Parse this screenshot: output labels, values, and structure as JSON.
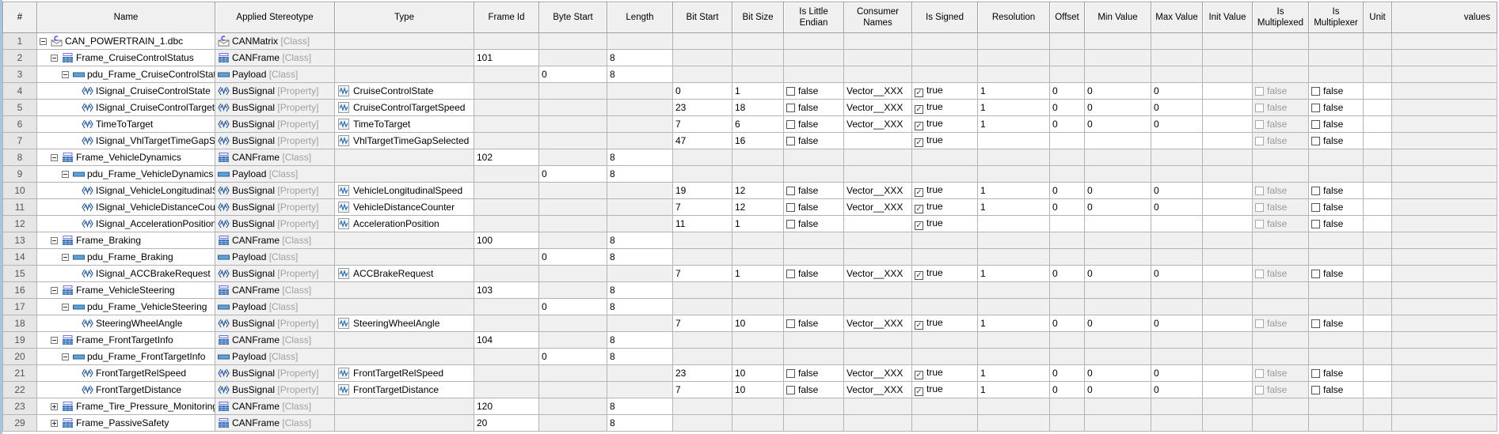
{
  "columns": [
    "#",
    "Name",
    "Applied Stereotype",
    "Type",
    "Frame Id",
    "Byte Start",
    "Length",
    "Bit Start",
    "Bit Size",
    "Is Little Endian",
    "Consumer Names",
    "Is Signed",
    "Resolution",
    "Offset",
    "Min Value",
    "Max Value",
    "Init Value",
    "Is Multiplexed",
    "Is Multiplexer",
    "Unit",
    "values"
  ],
  "colors": {
    "header_bg": "#f0f0f0",
    "readonly_cell": "#f0f0f0",
    "editable_cell": "#ffffff",
    "grid": "#b4b4b4",
    "meta_text": "#a0a0a0"
  },
  "rows": [
    {
      "num": "1",
      "kind": "root",
      "level": 0,
      "expander": "minus",
      "icon": "can-matrix-icon",
      "name": "CAN_POWERTRAIN_1.dbc",
      "stereotype": "CANMatrix",
      "meta": "[Class]"
    },
    {
      "num": "2",
      "kind": "frame",
      "level": 1,
      "expander": "minus",
      "icon": "can-frame-icon",
      "name": "Frame_CruiseControlStatus",
      "stereotype": "CANFrame",
      "meta": "[Class]",
      "frame_id": "101",
      "length": "8"
    },
    {
      "num": "3",
      "kind": "payload",
      "level": 2,
      "expander": "minus",
      "icon": "payload-icon",
      "name": "pdu_Frame_CruiseControlStatus",
      "stereotype": "Payload",
      "meta": "[Class]",
      "byte_start": "0",
      "length": "8"
    },
    {
      "num": "4",
      "kind": "signal",
      "level": 3,
      "icon": "bus-signal-icon",
      "name": "ISignal_CruiseControlState",
      "stereotype": "BusSignal",
      "meta": "[Property]",
      "type": "CruiseControlState",
      "bit_start": "0",
      "bit_size": "1",
      "little_endian": "false",
      "consumer": "Vector__XXX",
      "signed": "true",
      "resolution": "1",
      "offset": "0",
      "min": "0",
      "max": "0",
      "multiplexed": "false",
      "multiplexer": "false"
    },
    {
      "num": "5",
      "kind": "signal",
      "level": 3,
      "icon": "bus-signal-icon",
      "name": "ISignal_CruiseControlTargetSpeed",
      "stereotype": "BusSignal",
      "meta": "[Property]",
      "type": "CruiseControlTargetSpeed",
      "bit_start": "23",
      "bit_size": "18",
      "little_endian": "false",
      "consumer": "Vector__XXX",
      "signed": "true",
      "resolution": "1",
      "offset": "0",
      "min": "0",
      "max": "0",
      "multiplexed": "false",
      "multiplexer": "false"
    },
    {
      "num": "6",
      "kind": "signal",
      "level": 3,
      "icon": "bus-signal-icon",
      "name": "TimeToTarget",
      "stereotype": "BusSignal",
      "meta": "[Property]",
      "type": "TimeToTarget",
      "bit_start": "7",
      "bit_size": "6",
      "little_endian": "false",
      "consumer": "Vector__XXX",
      "signed": "true",
      "resolution": "1",
      "offset": "0",
      "min": "0",
      "max": "0",
      "multiplexed": "false",
      "multiplexer": "false"
    },
    {
      "num": "7",
      "kind": "signal",
      "level": 3,
      "icon": "bus-signal-icon",
      "name": "ISignal_VhlTargetTimeGapSelected",
      "stereotype": "BusSignal",
      "meta": "[Property]",
      "type": "VhlTargetTimeGapSelected",
      "bit_start": "47",
      "bit_size": "16",
      "little_endian": "false",
      "signed": "true",
      "multiplexed": "false",
      "multiplexer": "false"
    },
    {
      "num": "8",
      "kind": "frame",
      "level": 1,
      "expander": "minus",
      "icon": "can-frame-icon",
      "name": "Frame_VehicleDynamics",
      "stereotype": "CANFrame",
      "meta": "[Class]",
      "frame_id": "102",
      "length": "8"
    },
    {
      "num": "9",
      "kind": "payload",
      "level": 2,
      "expander": "minus",
      "icon": "payload-icon",
      "name": "pdu_Frame_VehicleDynamics",
      "stereotype": "Payload",
      "meta": "[Class]",
      "byte_start": "0",
      "length": "8"
    },
    {
      "num": "10",
      "kind": "signal",
      "level": 3,
      "icon": "bus-signal-icon",
      "name": "ISignal_VehicleLongitudinalSpeed",
      "stereotype": "BusSignal",
      "meta": "[Property]",
      "type": "VehicleLongitudinalSpeed",
      "bit_start": "19",
      "bit_size": "12",
      "little_endian": "false",
      "consumer": "Vector__XXX",
      "signed": "true",
      "resolution": "1",
      "offset": "0",
      "min": "0",
      "max": "0",
      "multiplexed": "false",
      "multiplexer": "false"
    },
    {
      "num": "11",
      "kind": "signal",
      "level": 3,
      "icon": "bus-signal-icon",
      "name": "ISignal_VehicleDistanceCounter",
      "stereotype": "BusSignal",
      "meta": "[Property]",
      "type": "VehicleDistanceCounter",
      "bit_start": "7",
      "bit_size": "12",
      "little_endian": "false",
      "consumer": "Vector__XXX",
      "signed": "true",
      "resolution": "1",
      "offset": "0",
      "min": "0",
      "max": "0",
      "multiplexed": "false",
      "multiplexer": "false"
    },
    {
      "num": "12",
      "kind": "signal",
      "level": 3,
      "icon": "bus-signal-icon",
      "name": "ISignal_AccelerationPosition",
      "stereotype": "BusSignal",
      "meta": "[Property]",
      "type": "AccelerationPosition",
      "bit_start": "11",
      "bit_size": "1",
      "little_endian": "false",
      "signed": "true",
      "multiplexed": "false",
      "multiplexer": "false"
    },
    {
      "num": "13",
      "kind": "frame",
      "level": 1,
      "expander": "minus",
      "icon": "can-frame-icon",
      "name": "Frame_Braking",
      "stereotype": "CANFrame",
      "meta": "[Class]",
      "frame_id": "100",
      "length": "8"
    },
    {
      "num": "14",
      "kind": "payload",
      "level": 2,
      "expander": "minus",
      "icon": "payload-icon",
      "name": "pdu_Frame_Braking",
      "stereotype": "Payload",
      "meta": "[Class]",
      "byte_start": "0",
      "length": "8"
    },
    {
      "num": "15",
      "kind": "signal",
      "level": 3,
      "icon": "bus-signal-icon",
      "name": "ISignal_ACCBrakeRequest",
      "stereotype": "BusSignal",
      "meta": "[Property]",
      "type": "ACCBrakeRequest",
      "bit_start": "7",
      "bit_size": "1",
      "little_endian": "false",
      "consumer": "Vector__XXX",
      "signed": "true",
      "resolution": "1",
      "offset": "0",
      "min": "0",
      "max": "0",
      "multiplexed": "false",
      "multiplexer": "false"
    },
    {
      "num": "16",
      "kind": "frame",
      "level": 1,
      "expander": "minus",
      "icon": "can-frame-icon",
      "name": "Frame_VehicleSteering",
      "stereotype": "CANFrame",
      "meta": "[Class]",
      "frame_id": "103",
      "length": "8"
    },
    {
      "num": "17",
      "kind": "payload",
      "level": 2,
      "expander": "minus",
      "icon": "payload-icon",
      "name": "pdu_Frame_VehicleSteering",
      "stereotype": "Payload",
      "meta": "[Class]",
      "byte_start": "0",
      "length": "8"
    },
    {
      "num": "18",
      "kind": "signal",
      "level": 3,
      "icon": "bus-signal-icon",
      "name": "SteeringWheelAngle",
      "stereotype": "BusSignal",
      "meta": "[Property]",
      "type": "SteeringWheelAngle",
      "bit_start": "7",
      "bit_size": "10",
      "little_endian": "false",
      "consumer": "Vector__XXX",
      "signed": "true",
      "resolution": "1",
      "offset": "0",
      "min": "0",
      "max": "0",
      "multiplexed": "false",
      "multiplexer": "false"
    },
    {
      "num": "19",
      "kind": "frame",
      "level": 1,
      "expander": "minus",
      "icon": "can-frame-icon",
      "name": "Frame_FrontTargetInfo",
      "stereotype": "CANFrame",
      "meta": "[Class]",
      "frame_id": "104",
      "length": "8"
    },
    {
      "num": "20",
      "kind": "payload",
      "level": 2,
      "expander": "minus",
      "icon": "payload-icon",
      "name": "pdu_Frame_FrontTargetInfo",
      "stereotype": "Payload",
      "meta": "[Class]",
      "byte_start": "0",
      "length": "8"
    },
    {
      "num": "21",
      "kind": "signal",
      "level": 3,
      "icon": "bus-signal-icon",
      "name": "FrontTargetRelSpeed",
      "stereotype": "BusSignal",
      "meta": "[Property]",
      "type": "FrontTargetRelSpeed",
      "bit_start": "23",
      "bit_size": "10",
      "little_endian": "false",
      "consumer": "Vector__XXX",
      "signed": "true",
      "resolution": "1",
      "offset": "0",
      "min": "0",
      "max": "0",
      "multiplexed": "false",
      "multiplexer": "false"
    },
    {
      "num": "22",
      "kind": "signal",
      "level": 3,
      "icon": "bus-signal-icon",
      "name": "FrontTargetDistance",
      "stereotype": "BusSignal",
      "meta": "[Property]",
      "type": "FrontTargetDistance",
      "bit_start": "7",
      "bit_size": "10",
      "little_endian": "false",
      "consumer": "Vector__XXX",
      "signed": "true",
      "resolution": "1",
      "offset": "0",
      "min": "0",
      "max": "0",
      "multiplexed": "false",
      "multiplexer": "false"
    },
    {
      "num": "23",
      "kind": "frame",
      "level": 1,
      "expander": "plus",
      "icon": "can-frame-icon",
      "name": "Frame_Tire_Pressure_Monitoring",
      "stereotype": "CANFrame",
      "meta": "[Class]",
      "frame_id": "120",
      "length": "8"
    },
    {
      "num": "29",
      "kind": "frame",
      "level": 1,
      "expander": "plus",
      "icon": "can-frame-icon",
      "name": "Frame_PassiveSafety",
      "stereotype": "CANFrame",
      "meta": "[Class]",
      "frame_id": "20",
      "length": "8"
    }
  ]
}
